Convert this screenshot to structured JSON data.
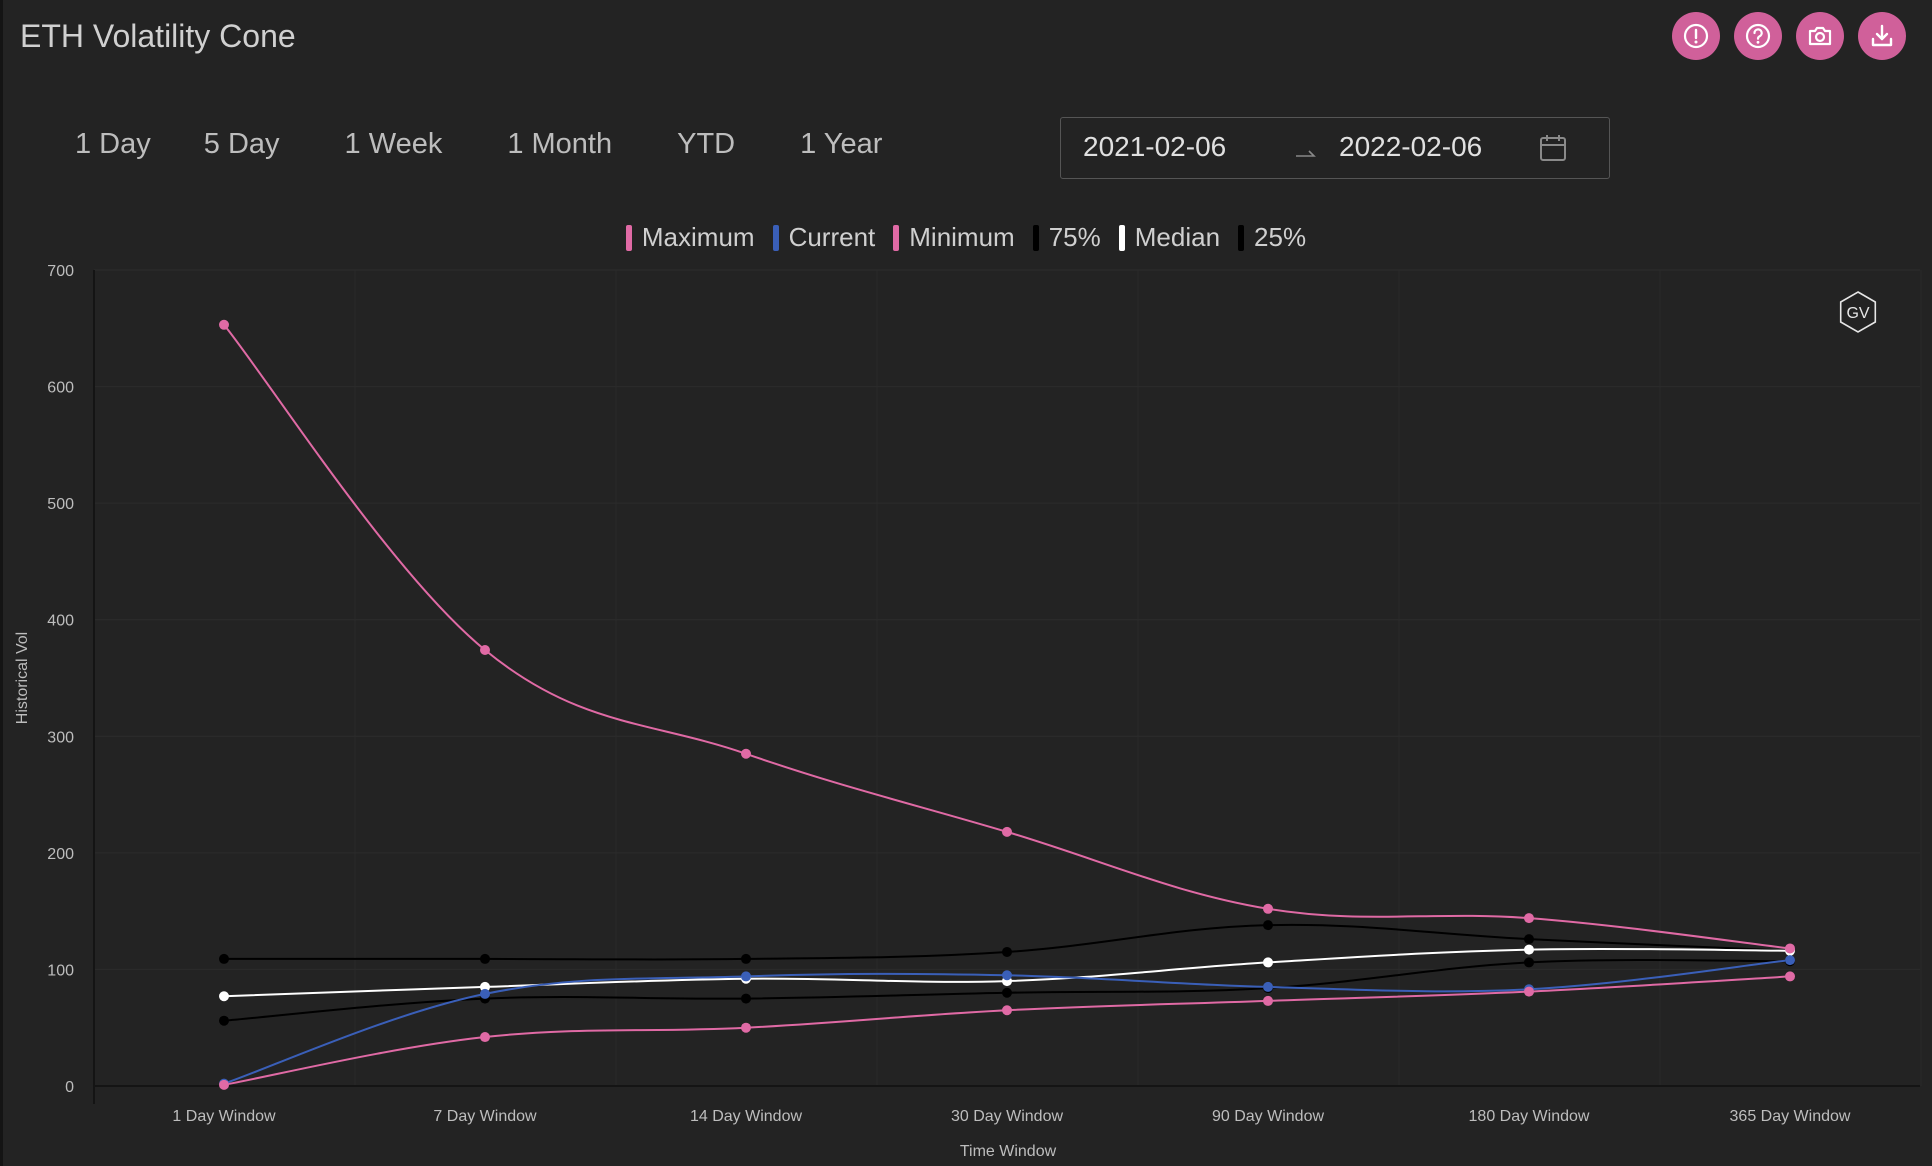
{
  "title": "ETH Volatility Cone",
  "toolbar": [
    {
      "name": "info-button",
      "icon": "alert-circle-icon"
    },
    {
      "name": "help-button",
      "icon": "question-circle-icon"
    },
    {
      "name": "snapshot-button",
      "icon": "camera-icon"
    },
    {
      "name": "download-button",
      "icon": "download-icon"
    }
  ],
  "ranges": [
    "1 Day",
    "5 Day",
    "1 Week",
    "1 Month",
    "YTD",
    "1 Year"
  ],
  "date_range": {
    "start": "2021-02-06",
    "end": "2022-02-06"
  },
  "watermark": "GV",
  "colors": {
    "accent": "#d0609a",
    "pink": "#e06aa5",
    "blue": "#3a5fb8",
    "black": "#000000",
    "white": "#ffffff"
  },
  "chart_data": {
    "type": "line",
    "xlabel": "Time Window",
    "ylabel": "Historical Vol",
    "ylim": [
      0,
      700
    ],
    "yticks": [
      0,
      100,
      200,
      300,
      400,
      500,
      600,
      700
    ],
    "grid": true,
    "legend_position": "top-center",
    "categories": [
      "1 Day Window",
      "7 Day Window",
      "14 Day Window",
      "30 Day Window",
      "90 Day Window",
      "180 Day Window",
      "365 Day Window"
    ],
    "series": [
      {
        "name": "Maximum",
        "color": "#e06aa5",
        "values": [
          653,
          374,
          285,
          218,
          152,
          144,
          118
        ]
      },
      {
        "name": "Current",
        "color": "#3a5fb8",
        "values": [
          2,
          79,
          94,
          95,
          85,
          83,
          108
        ]
      },
      {
        "name": "Minimum",
        "color": "#e06aa5",
        "values": [
          1,
          42,
          50,
          65,
          73,
          81,
          94
        ]
      },
      {
        "name": "75%",
        "color": "#000000",
        "values": [
          109,
          109,
          109,
          115,
          138,
          126,
          116
        ]
      },
      {
        "name": "Median",
        "color": "#ffffff",
        "values": [
          77,
          85,
          92,
          90,
          106,
          117,
          116
        ]
      },
      {
        "name": "25%",
        "color": "#000000",
        "values": [
          56,
          75,
          75,
          80,
          84,
          106,
          107
        ]
      }
    ]
  }
}
